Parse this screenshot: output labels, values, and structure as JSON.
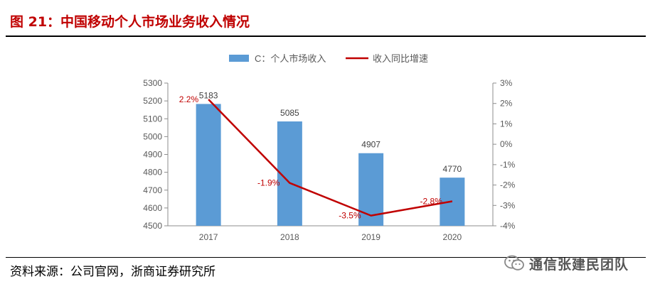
{
  "header": {
    "title": "图 21：中国移动个人市场业务收入情况"
  },
  "footer": {
    "source": "资料来源：公司官网，浙商证券研究所"
  },
  "watermark": {
    "text": "通信张建民团队"
  },
  "colors": {
    "bar": "#5b9bd5",
    "line": "#c00000",
    "title": "#c00000",
    "axis": "#8c8c8c",
    "text": "#595959"
  },
  "chart_data": {
    "type": "bar",
    "categories": [
      "2017",
      "2018",
      "2019",
      "2020"
    ],
    "series": [
      {
        "name": "C：个人市场收入",
        "type": "bar",
        "axis": "left",
        "values": [
          5183,
          5085,
          4907,
          4770
        ],
        "labels": [
          "5183",
          "5085",
          "4907",
          "4770"
        ]
      },
      {
        "name": "收入同比增速",
        "type": "line",
        "axis": "right",
        "values": [
          2.2,
          -1.9,
          -3.5,
          -2.8
        ],
        "labels": [
          "2.2%",
          "-1.9%",
          "-3.5%",
          "-2.8%"
        ]
      }
    ],
    "y_left": {
      "min": 4500,
      "max": 5300,
      "ticks": [
        "4500",
        "4600",
        "4700",
        "4800",
        "4900",
        "5000",
        "5100",
        "5200",
        "5300"
      ]
    },
    "y_right": {
      "min": -4,
      "max": 3,
      "ticks": [
        "-4%",
        "-3%",
        "-2%",
        "-1%",
        "0%",
        "1%",
        "2%",
        "3%"
      ]
    },
    "legend": "top",
    "grid": false
  }
}
